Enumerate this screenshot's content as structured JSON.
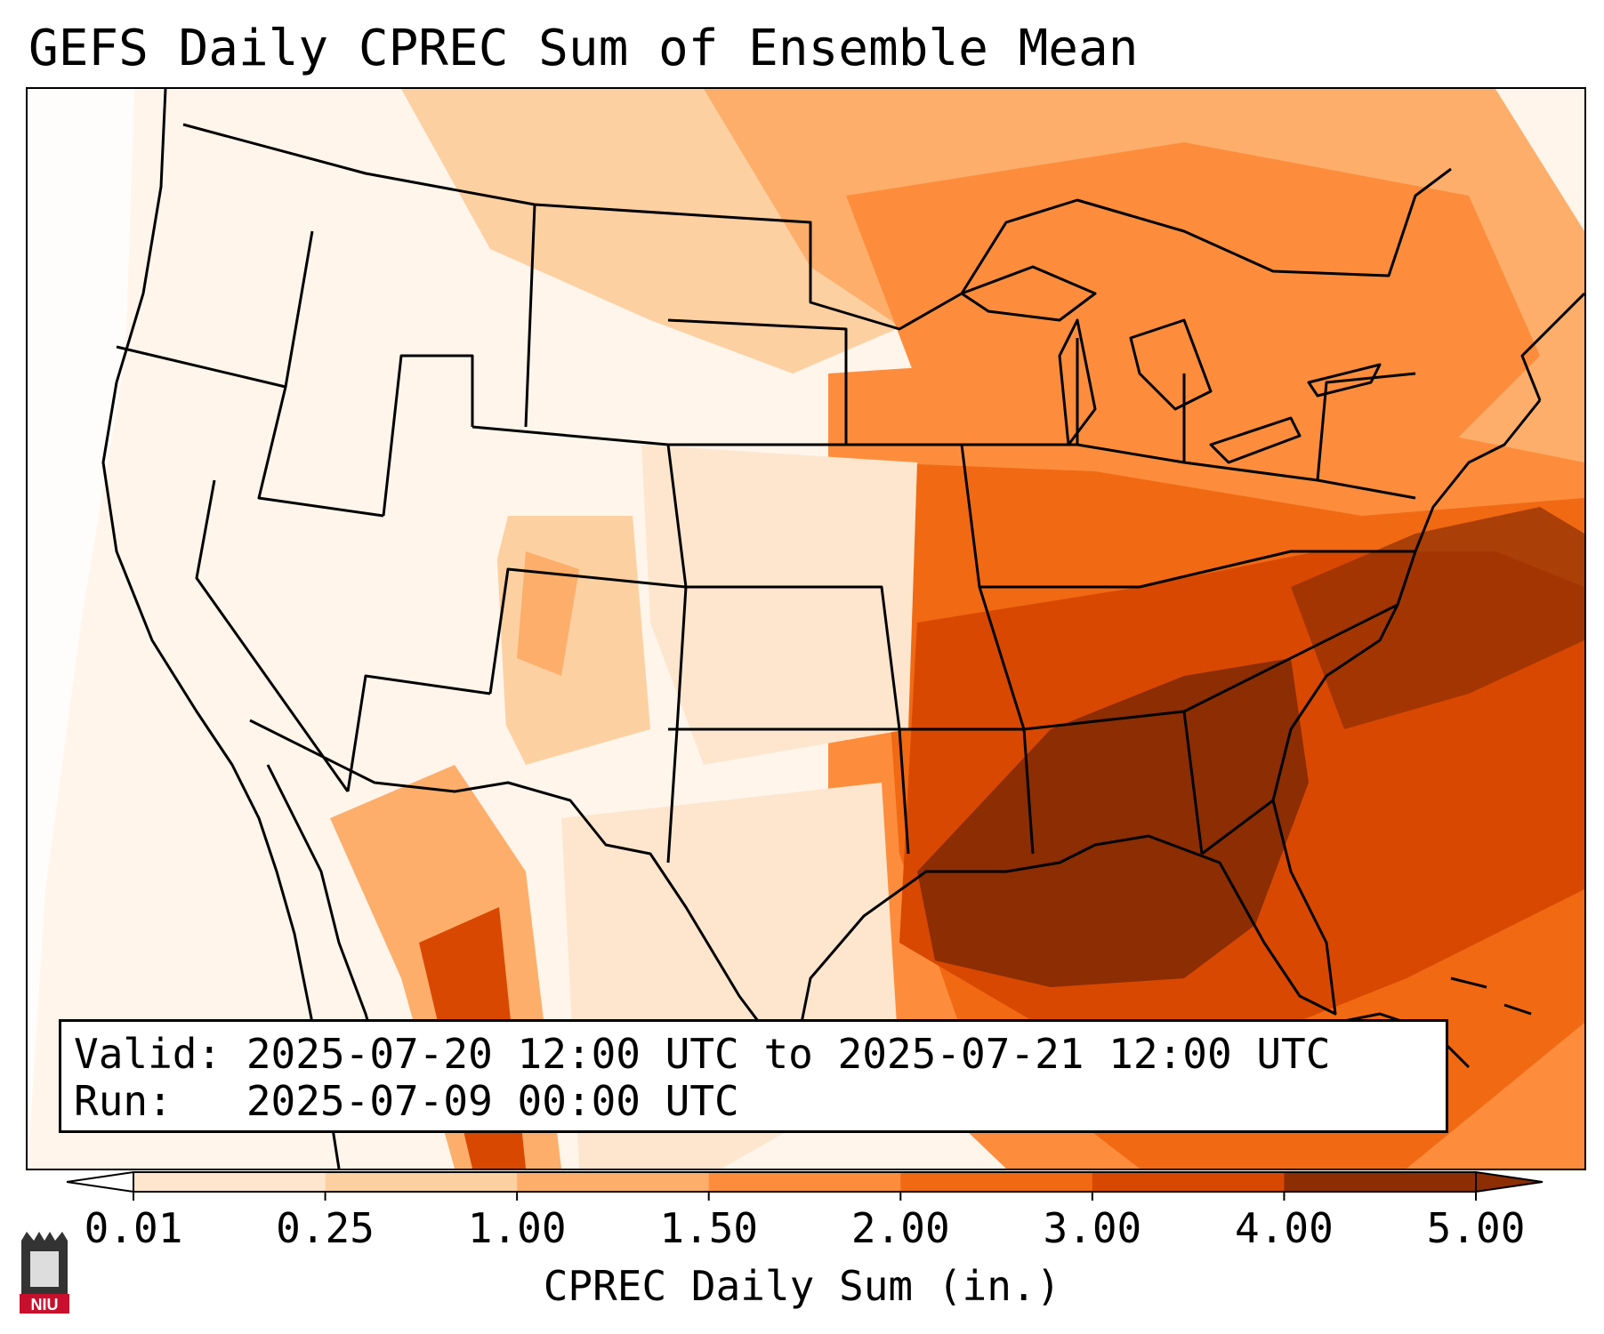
{
  "title": "GEFS Daily CPREC Sum of Ensemble Mean",
  "info": {
    "valid_line": "Valid: 2025-07-20 12:00 UTC to 2025-07-21 12:00 UTC",
    "run_line": "Run:   2025-07-09 00:00 UTC"
  },
  "colorbar": {
    "label": "CPREC Daily Sum (in.)",
    "levels": [
      "0.01",
      "0.25",
      "1.00",
      "1.50",
      "2.00",
      "3.00",
      "4.00",
      "5.00"
    ],
    "colors": [
      "#fff5eb",
      "#fee6ce",
      "#fdd0a2",
      "#fdae6b",
      "#fd8d3c",
      "#f16913",
      "#d94801",
      "#8c2d04"
    ],
    "under_color": "#ffffff",
    "over_color": "#8c2d04"
  },
  "map": {
    "projection": "Lambert conformal (CONUS)",
    "region": "Contiguous United States, southern Canada, northern Mexico, Gulf of Mexico, western Atlantic",
    "features": [
      "coastlines",
      "state-boundaries",
      "country-borders",
      "great-lakes"
    ],
    "precip_pattern": "heaviest (3-5+ in.) over Gulf Coast, Southeast, and Mid-Atlantic; moderate over Midwest and Northeast; light over West"
  },
  "logo": {
    "text": "NIU",
    "color": "#c8102e"
  }
}
